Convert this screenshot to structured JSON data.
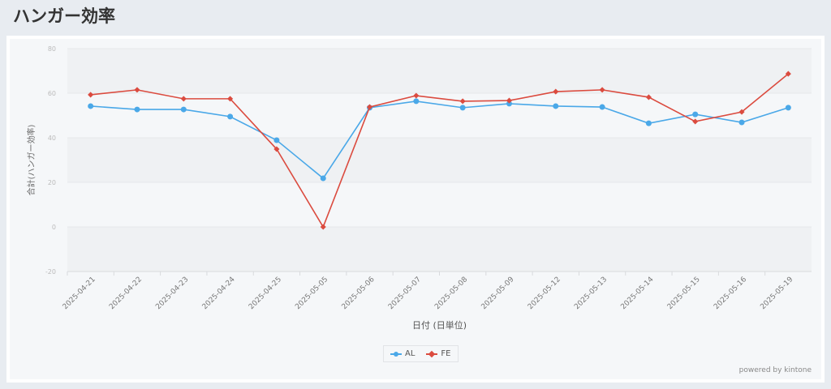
{
  "page": {
    "title": "ハンガー効率",
    "powered_by": "powered by kintone"
  },
  "chart_data": {
    "type": "line",
    "title": "",
    "xlabel": "日付 (日単位)",
    "ylabel": "合計(ハンガー効率)",
    "ylim": [
      -20,
      80
    ],
    "yticks": [
      "80",
      "60",
      "40",
      "20",
      "0",
      "-20"
    ],
    "grid": true,
    "legend_position": "bottom-center",
    "categories": [
      "2025-04-21",
      "2025-04-22",
      "2025-04-23",
      "2025-04-24",
      "2025-04-25",
      "2025-05-05",
      "2025-05-06",
      "2025-05-07",
      "2025-05-08",
      "2025-05-09",
      "2025-05-12",
      "2025-05-13",
      "2025-05-14",
      "2025-05-15",
      "2025-05-16",
      "2025-05-19"
    ],
    "series": [
      {
        "name": "AL",
        "color": "#4aa8e8",
        "values": [
          54.2,
          52.7,
          52.7,
          49.5,
          38.9,
          21.8,
          53.5,
          56.4,
          53.5,
          55.3,
          54.2,
          53.8,
          46.5,
          50.5,
          46.9,
          53.5
        ]
      },
      {
        "name": "FE",
        "color": "#db4b3f",
        "values": [
          59.3,
          61.5,
          57.5,
          57.5,
          34.9,
          0,
          53.8,
          58.9,
          56.4,
          56.7,
          60.7,
          61.5,
          58.2,
          47.3,
          51.6,
          68.7
        ]
      }
    ]
  }
}
